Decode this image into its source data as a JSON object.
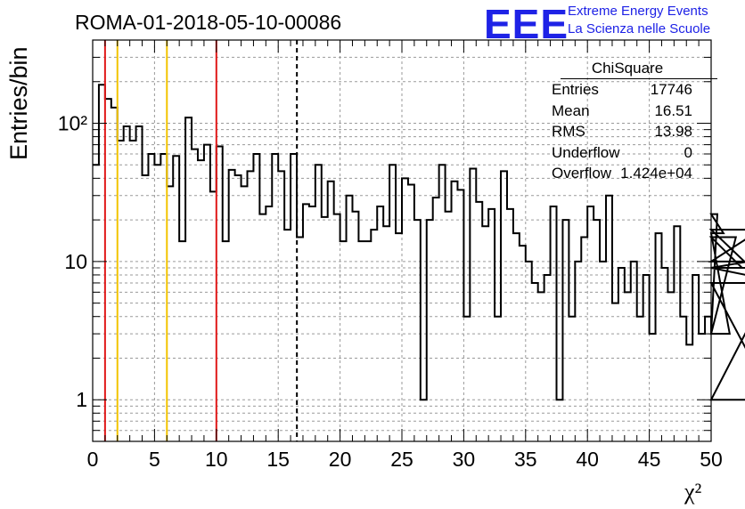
{
  "header": {
    "title": "ROMA-01-2018-05-10-00086",
    "logo": "EEE",
    "org_line1": "Extreme Energy Events",
    "org_line2": "La Scienza nelle Scuole"
  },
  "stats": {
    "name": "ChiSquare",
    "rows": [
      {
        "label": "Entries",
        "value": "17746"
      },
      {
        "label": "Mean",
        "value": "16.51"
      },
      {
        "label": "RMS",
        "value": "13.98"
      },
      {
        "label": "Underflow",
        "value": "0"
      },
      {
        "label": "Overflow",
        "value": "1.424e+04"
      }
    ]
  },
  "chart_data": {
    "type": "histogram",
    "xlabel": "χ²",
    "ylabel": "Entries/bin",
    "xlim": [
      0,
      50
    ],
    "ylim": [
      0.5,
      400
    ],
    "yscale": "log",
    "bin_width": 0.5,
    "x_ticks": [
      0,
      5,
      10,
      15,
      20,
      25,
      30,
      35,
      40,
      45,
      50
    ],
    "y_ticks": [
      {
        "value": 1,
        "label": "1"
      },
      {
        "value": 10,
        "label": "10"
      },
      {
        "value": 100,
        "label": "10²"
      }
    ],
    "grid": true,
    "values": [
      50,
      190,
      150,
      130,
      75,
      95,
      75,
      95,
      42,
      60,
      50,
      60,
      35,
      58,
      14,
      110,
      65,
      54,
      70,
      32,
      68,
      14,
      46,
      42,
      35,
      45,
      60,
      22,
      25,
      60,
      45,
      17,
      60,
      15,
      26,
      25,
      50,
      21,
      38,
      22,
      14,
      30,
      23,
      14,
      14,
      17,
      25,
      18,
      50,
      16,
      40,
      36,
      20,
      1,
      20,
      29,
      50,
      23,
      38,
      33,
      4,
      47,
      27,
      18,
      24,
      4,
      45,
      24,
      16,
      13,
      10,
      7,
      6,
      8,
      25,
      1,
      20,
      4,
      10,
      15,
      25,
      20,
      10,
      30,
      5,
      9,
      6,
      10,
      4,
      8,
      3,
      16,
      9,
      6,
      18,
      4,
      2.5,
      8,
      3,
      4,
      3,
      22,
      16,
      3,
      15,
      9,
      10,
      10,
      17,
      7,
      1,
      9,
      7
    ],
    "lines": [
      {
        "x": 1,
        "color": "#e01818",
        "style": "solid"
      },
      {
        "x": 2,
        "color": "#f2c400",
        "style": "solid"
      },
      {
        "x": 6,
        "color": "#f2c400",
        "style": "solid"
      },
      {
        "x": 10,
        "color": "#e01818",
        "style": "solid"
      },
      {
        "x": 16.51,
        "color": "#000000",
        "style": "dashed"
      }
    ]
  }
}
